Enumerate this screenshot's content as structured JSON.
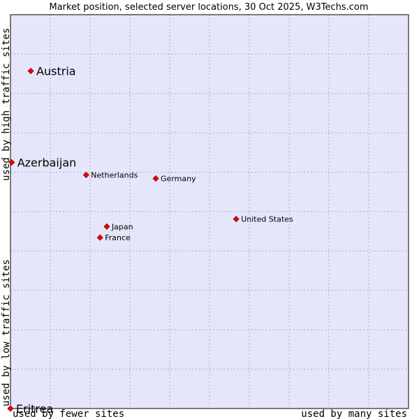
{
  "chart_data": {
    "type": "scatter",
    "title": "Market position, selected server locations, 30 Oct 2025, W3Techs.com",
    "xlabel_left": "used by fewer sites",
    "xlabel_right": "used by many sites",
    "ylabel_bottom": "used by low traffic sites",
    "ylabel_top": "used by high traffic sites",
    "xlim": [
      0,
      100
    ],
    "ylim": [
      0,
      100
    ],
    "grid": true,
    "colors": {
      "plot_bg": "#e6e6fa",
      "grid": "#a9a9c8",
      "marker": "#ee0000",
      "marker_edge": "#880000"
    },
    "points": [
      {
        "label": "Austria",
        "x": 5.1,
        "y": 85.7,
        "highlight": true
      },
      {
        "label": "Azerbaijan",
        "x": 0.3,
        "y": 62.5,
        "highlight": true
      },
      {
        "label": "Eritrea",
        "x": 0.0,
        "y": 0.0,
        "highlight": true
      },
      {
        "label": "Netherlands",
        "x": 19.0,
        "y": 59.3,
        "highlight": false
      },
      {
        "label": "Germany",
        "x": 36.5,
        "y": 58.4,
        "highlight": false
      },
      {
        "label": "United States",
        "x": 56.7,
        "y": 48.1,
        "highlight": false
      },
      {
        "label": "Japan",
        "x": 24.2,
        "y": 46.2,
        "highlight": false
      },
      {
        "label": "France",
        "x": 22.5,
        "y": 43.4,
        "highlight": false
      }
    ]
  }
}
